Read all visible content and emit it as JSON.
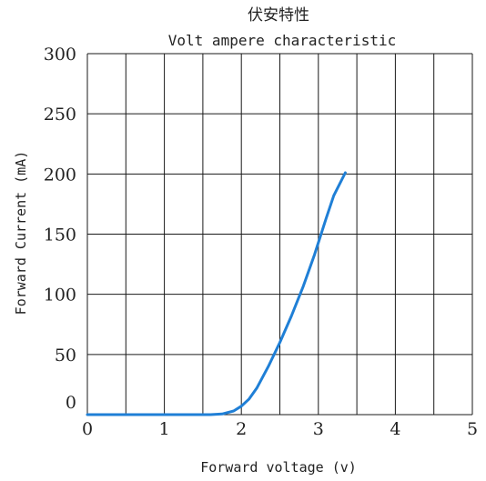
{
  "chart_data": {
    "type": "line",
    "title": "伏安特性",
    "subtitle": "Volt ampere characteristic",
    "xlabel": "Forward  voltage (v)",
    "ylabel": "Forward Current (mA)",
    "xlim": [
      0,
      5
    ],
    "ylim": [
      0,
      300
    ],
    "x_ticks": [
      "0",
      "1",
      "2",
      "3",
      "4",
      "5"
    ],
    "y_ticks": [
      "0",
      "50",
      "100",
      "150",
      "200",
      "250",
      "300"
    ],
    "grid": true,
    "colors": {
      "series": "#1f7fd6",
      "grid": "#1a1a1a"
    },
    "series": [
      {
        "x": [
          0,
          1.0,
          1.6,
          1.75,
          1.9,
          2.0,
          2.1,
          2.2,
          2.35,
          2.5,
          2.65,
          2.8,
          2.95,
          3.1,
          3.2,
          3.35
        ],
        "y": [
          0,
          0,
          0,
          0.5,
          3,
          7,
          13,
          22,
          40,
          60,
          82,
          106,
          133,
          163,
          182,
          201
        ]
      }
    ]
  }
}
